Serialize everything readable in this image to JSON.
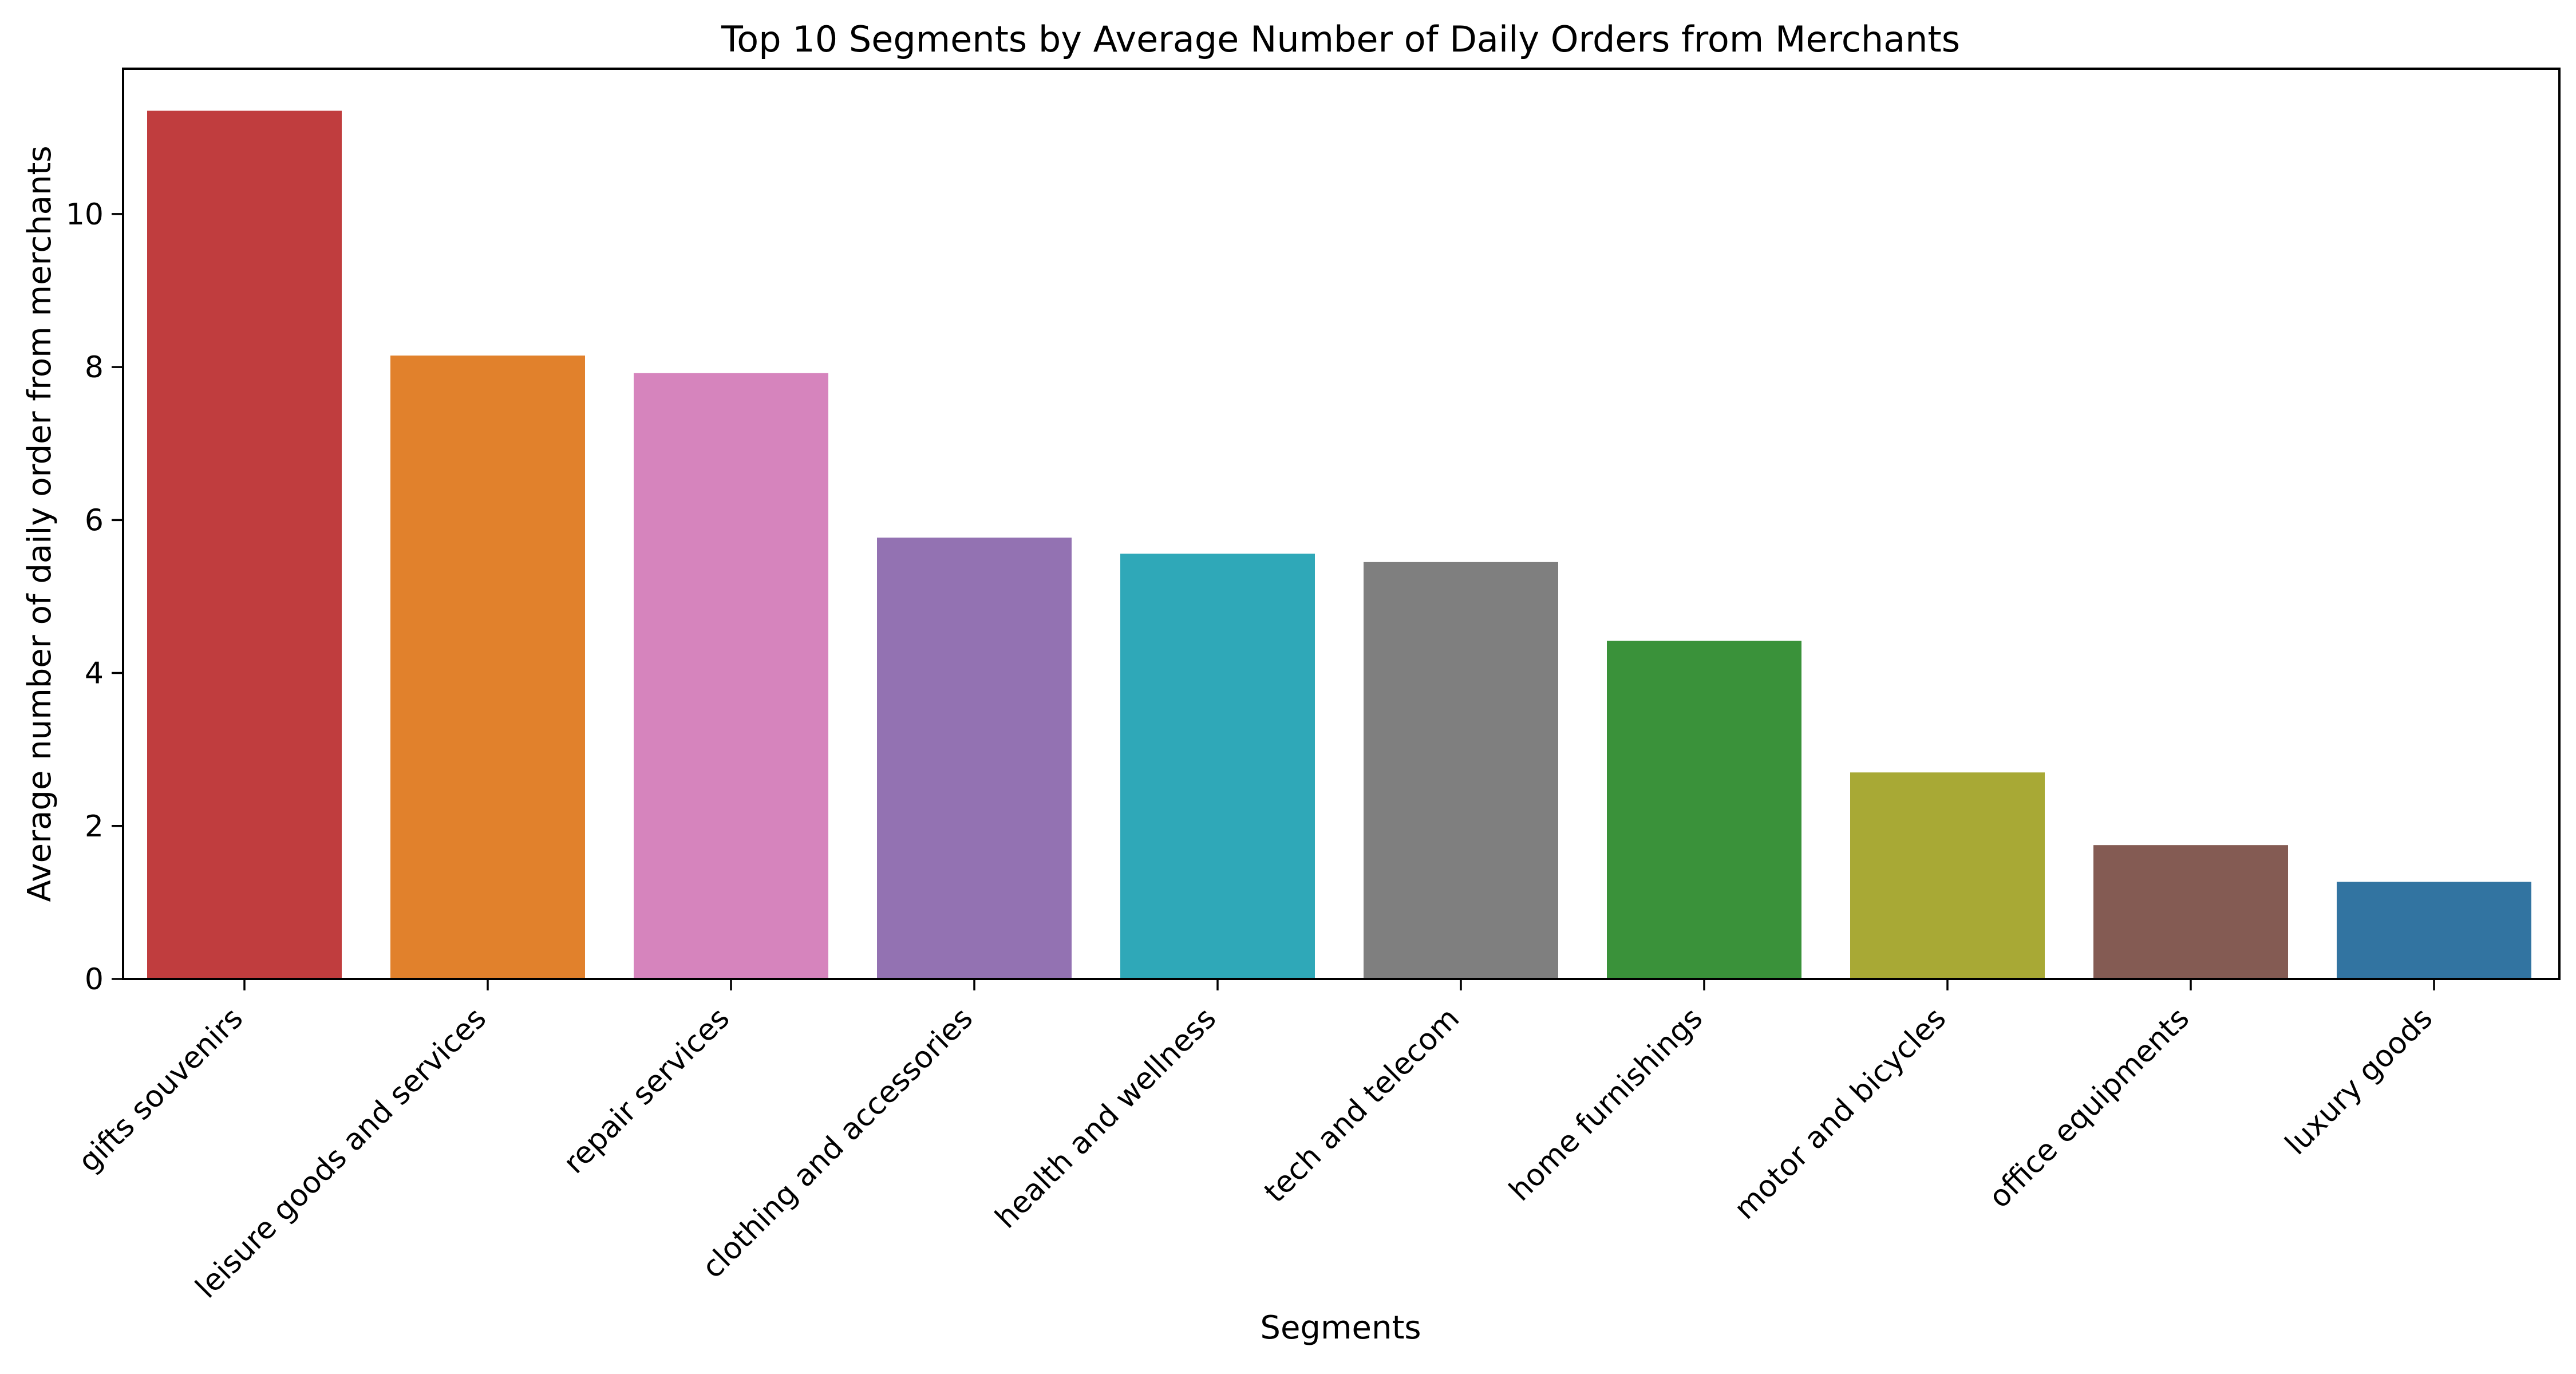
{
  "chart_data": {
    "type": "bar",
    "title": "Top 10 Segments by Average Number of Daily Orders from Merchants",
    "xlabel": "Segments",
    "ylabel": "Average number of daily order from merchants",
    "categories": [
      "gifts souvenirs",
      "leisure goods and services",
      "repair services",
      "clothing and accessories",
      "health and wellness",
      "tech and telecom",
      "home furnishings",
      "motor and bicycles",
      "office equipments",
      "luxury goods"
    ],
    "values": [
      11.35,
      8.15,
      7.92,
      5.77,
      5.56,
      5.45,
      4.42,
      2.7,
      1.75,
      1.27
    ],
    "colors": [
      "#c03d3e",
      "#e1812c",
      "#d684bd",
      "#9372b2",
      "#2fa8b8",
      "#7f7f7f",
      "#3a923a",
      "#a8a935",
      "#845b53",
      "#3274a1"
    ],
    "ylim": [
      0,
      11.9
    ],
    "yticks": [
      0,
      2,
      4,
      6,
      8,
      10
    ],
    "grid": false,
    "legend": "none"
  }
}
